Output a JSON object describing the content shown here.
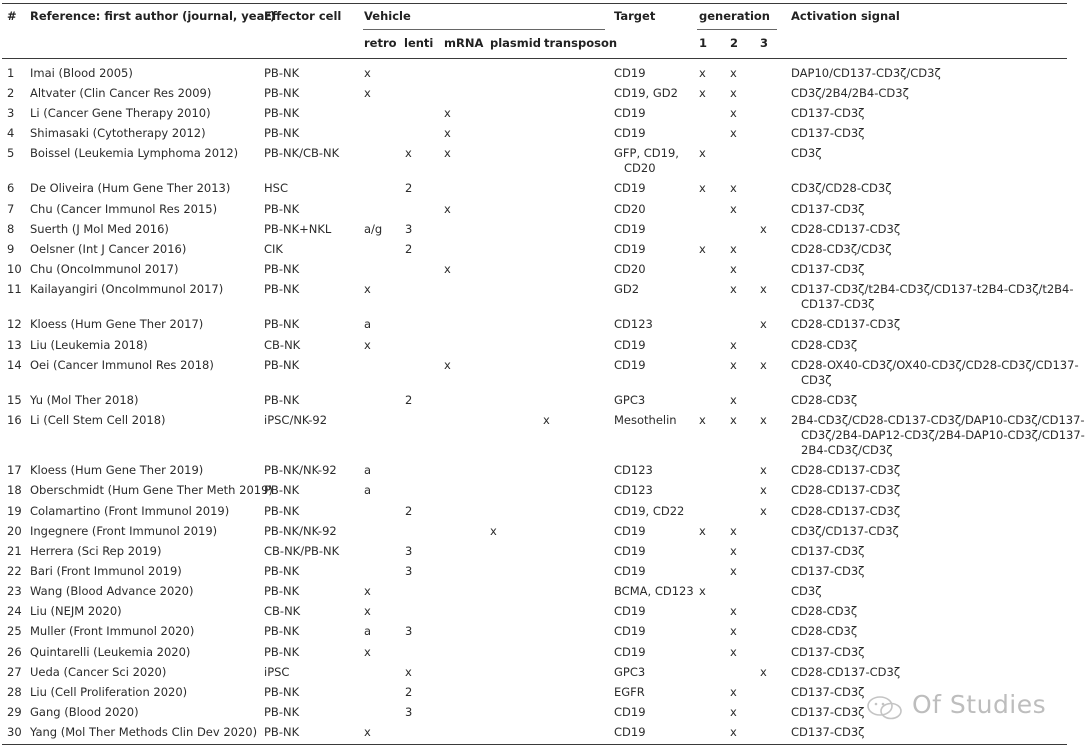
{
  "headers": {
    "num": "#",
    "reference": "Reference: first author (journal, year)",
    "effector": "Effector cell",
    "vehicle": "Vehicle",
    "target": "Target",
    "generation": "generation",
    "activation": "Activation signal",
    "vehicle_sub": [
      "retro",
      "lenti",
      "mRNA",
      "plasmid",
      "transposon"
    ],
    "generation_sub": [
      "1",
      "2",
      "3"
    ]
  },
  "rows": [
    {
      "num": "1",
      "ref": "Imai (Blood 2005)",
      "eff": "PB-NK",
      "retro": "x",
      "lenti": "",
      "mrna": "",
      "plasmid": "",
      "transposon": "",
      "target": [
        "CD19"
      ],
      "g1": "x",
      "g2": "x",
      "g3": "",
      "signal": [
        "DAP10/CD137-CD3ζ/CD3ζ"
      ]
    },
    {
      "num": "2",
      "ref": "Altvater (Clin Cancer Res 2009)",
      "eff": "PB-NK",
      "retro": "x",
      "lenti": "",
      "mrna": "",
      "plasmid": "",
      "transposon": "",
      "target": [
        "CD19, GD2"
      ],
      "g1": "x",
      "g2": "x",
      "g3": "",
      "signal": [
        "CD3ζ/2B4/2B4-CD3ζ"
      ]
    },
    {
      "num": "3",
      "ref": "Li (Cancer Gene Therapy 2010)",
      "eff": "PB-NK",
      "retro": "",
      "lenti": "",
      "mrna": "x",
      "plasmid": "",
      "transposon": "",
      "target": [
        "CD19"
      ],
      "g1": "",
      "g2": "x",
      "g3": "",
      "signal": [
        "CD137-CD3ζ"
      ]
    },
    {
      "num": "4",
      "ref": "Shimasaki (Cytotherapy 2012)",
      "eff": "PB-NK",
      "retro": "",
      "lenti": "",
      "mrna": "x",
      "plasmid": "",
      "transposon": "",
      "target": [
        "CD19"
      ],
      "g1": "",
      "g2": "x",
      "g3": "",
      "signal": [
        "CD137-CD3ζ"
      ]
    },
    {
      "num": "5",
      "ref": "Boissel (Leukemia Lymphoma 2012)",
      "eff": "PB-NK/CB-NK",
      "retro": "",
      "lenti": "x",
      "mrna": "x",
      "plasmid": "",
      "transposon": "",
      "target": [
        "GFP, CD19,",
        "CD20"
      ],
      "g1": "x",
      "g2": "",
      "g3": "",
      "signal": [
        "CD3ζ"
      ]
    },
    {
      "num": "6",
      "ref": "De Oliveira (Hum Gene Ther 2013)",
      "eff": "HSC",
      "retro": "",
      "lenti": "2",
      "mrna": "",
      "plasmid": "",
      "transposon": "",
      "target": [
        "CD19"
      ],
      "g1": "x",
      "g2": "x",
      "g3": "",
      "signal": [
        "CD3ζ/CD28-CD3ζ"
      ]
    },
    {
      "num": "7",
      "ref": "Chu (Cancer Immunol Res 2015)",
      "eff": "PB-NK",
      "retro": "",
      "lenti": "",
      "mrna": "x",
      "plasmid": "",
      "transposon": "",
      "target": [
        "CD20"
      ],
      "g1": "",
      "g2": "x",
      "g3": "",
      "signal": [
        "CD137-CD3ζ"
      ]
    },
    {
      "num": "8",
      "ref": "Suerth (J Mol Med 2016)",
      "eff": "PB-NK+NKL",
      "retro": "a/g",
      "lenti": "3",
      "mrna": "",
      "plasmid": "",
      "transposon": "",
      "target": [
        "CD19"
      ],
      "g1": "",
      "g2": "",
      "g3": "x",
      "signal": [
        "CD28-CD137-CD3ζ"
      ]
    },
    {
      "num": "9",
      "ref": "Oelsner (Int J Cancer 2016)",
      "eff": "CIK",
      "retro": "",
      "lenti": "2",
      "mrna": "",
      "plasmid": "",
      "transposon": "",
      "target": [
        "CD19"
      ],
      "g1": "x",
      "g2": "x",
      "g3": "",
      "signal": [
        "CD28-CD3ζ/CD3ζ"
      ]
    },
    {
      "num": "10",
      "ref": "Chu (OncoImmunol 2017)",
      "eff": "PB-NK",
      "retro": "",
      "lenti": "",
      "mrna": "x",
      "plasmid": "",
      "transposon": "",
      "target": [
        "CD20"
      ],
      "g1": "",
      "g2": "x",
      "g3": "",
      "signal": [
        "CD137-CD3ζ"
      ]
    },
    {
      "num": "11",
      "ref": "Kailayangiri (OncoImmunol 2017)",
      "eff": "PB-NK",
      "retro": "x",
      "lenti": "",
      "mrna": "",
      "plasmid": "",
      "transposon": "",
      "target": [
        "GD2"
      ],
      "g1": "",
      "g2": "x",
      "g3": "x",
      "signal": [
        "CD137-CD3ζ/t2B4-CD3ζ/CD137-t2B4-CD3ζ/t2B4-",
        "CD137-CD3ζ"
      ]
    },
    {
      "num": "12",
      "ref": "Kloess (Hum Gene Ther 2017)",
      "eff": "PB-NK",
      "retro": "a",
      "lenti": "",
      "mrna": "",
      "plasmid": "",
      "transposon": "",
      "target": [
        "CD123"
      ],
      "g1": "",
      "g2": "",
      "g3": "x",
      "signal": [
        "CD28-CD137-CD3ζ"
      ]
    },
    {
      "num": "13",
      "ref": "Liu (Leukemia 2018)",
      "eff": "CB-NK",
      "retro": "x",
      "lenti": "",
      "mrna": "",
      "plasmid": "",
      "transposon": "",
      "target": [
        "CD19"
      ],
      "g1": "",
      "g2": "x",
      "g3": "",
      "signal": [
        "CD28-CD3ζ"
      ]
    },
    {
      "num": "14",
      "ref": "Oei (Cancer Immunol Res 2018)",
      "eff": "PB-NK",
      "retro": "",
      "lenti": "",
      "mrna": "x",
      "plasmid": "",
      "transposon": "",
      "target": [
        "CD19"
      ],
      "g1": "",
      "g2": "x",
      "g3": "x",
      "signal": [
        "CD28-OX40-CD3ζ/OX40-CD3ζ/CD28-CD3ζ/CD137-",
        "CD3ζ"
      ]
    },
    {
      "num": "15",
      "ref": "Yu (Mol Ther 2018)",
      "eff": "PB-NK",
      "retro": "",
      "lenti": "2",
      "mrna": "",
      "plasmid": "",
      "transposon": "",
      "target": [
        "GPC3"
      ],
      "g1": "",
      "g2": "x",
      "g3": "",
      "signal": [
        "CD28-CD3ζ"
      ]
    },
    {
      "num": "16",
      "ref": "Li (Cell Stem Cell 2018)",
      "eff": "iPSC/NK-92",
      "retro": "",
      "lenti": "",
      "mrna": "",
      "plasmid": "",
      "transposon": "x",
      "target": [
        "Mesothelin"
      ],
      "g1": "x",
      "g2": "x",
      "g3": "x",
      "signal": [
        "2B4-CD3ζ/CD28-CD137-CD3ζ/DAP10-CD3ζ/CD137-",
        "CD3ζ/2B4-DAP12-CD3ζ/2B4-DAP10-CD3ζ/CD137-",
        "2B4-CD3ζ/CD3ζ"
      ]
    },
    {
      "num": "17",
      "ref": "Kloess (Hum Gene Ther 2019)",
      "eff": "PB-NK/NK-92",
      "retro": "a",
      "lenti": "",
      "mrna": "",
      "plasmid": "",
      "transposon": "",
      "target": [
        "CD123"
      ],
      "g1": "",
      "g2": "",
      "g3": "x",
      "signal": [
        "CD28-CD137-CD3ζ"
      ]
    },
    {
      "num": "18",
      "ref": "Oberschmidt (Hum Gene Ther Meth 2019)",
      "eff": "PB-NK",
      "retro": "a",
      "lenti": "",
      "mrna": "",
      "plasmid": "",
      "transposon": "",
      "target": [
        "CD123"
      ],
      "g1": "",
      "g2": "",
      "g3": "x",
      "signal": [
        "CD28-CD137-CD3ζ"
      ]
    },
    {
      "num": "19",
      "ref": "Colamartino (Front Immunol 2019)",
      "eff": "PB-NK",
      "retro": "",
      "lenti": "2",
      "mrna": "",
      "plasmid": "",
      "transposon": "",
      "target": [
        "CD19, CD22"
      ],
      "g1": "",
      "g2": "",
      "g3": "x",
      "signal": [
        "CD28-CD137-CD3ζ"
      ]
    },
    {
      "num": "20",
      "ref": "Ingegnere (Front Immunol 2019)",
      "eff": "PB-NK/NK-92",
      "retro": "",
      "lenti": "",
      "mrna": "",
      "plasmid": "x",
      "transposon": "",
      "target": [
        "CD19"
      ],
      "g1": "x",
      "g2": "x",
      "g3": "",
      "signal": [
        "CD3ζ/CD137-CD3ζ"
      ]
    },
    {
      "num": "21",
      "ref": "Herrera (Sci Rep 2019)",
      "eff": "CB-NK/PB-NK",
      "retro": "",
      "lenti": "3",
      "mrna": "",
      "plasmid": "",
      "transposon": "",
      "target": [
        "CD19"
      ],
      "g1": "",
      "g2": "x",
      "g3": "",
      "signal": [
        "CD137-CD3ζ"
      ]
    },
    {
      "num": "22",
      "ref": "Bari (Front Immunol 2019)",
      "eff": "PB-NK",
      "retro": "",
      "lenti": "3",
      "mrna": "",
      "plasmid": "",
      "transposon": "",
      "target": [
        "CD19"
      ],
      "g1": "",
      "g2": "x",
      "g3": "",
      "signal": [
        "CD137-CD3ζ"
      ]
    },
    {
      "num": "23",
      "ref": "Wang (Blood Advance 2020)",
      "eff": "PB-NK",
      "retro": "x",
      "lenti": "",
      "mrna": "",
      "plasmid": "",
      "transposon": "",
      "target": [
        "BCMA, CD123"
      ],
      "g1": "x",
      "g2": "",
      "g3": "",
      "signal": [
        "CD3ζ"
      ]
    },
    {
      "num": "24",
      "ref": "Liu (NEJM 2020)",
      "eff": "CB-NK",
      "retro": "x",
      "lenti": "",
      "mrna": "",
      "plasmid": "",
      "transposon": "",
      "target": [
        "CD19"
      ],
      "g1": "",
      "g2": "x",
      "g3": "",
      "signal": [
        "CD28-CD3ζ"
      ]
    },
    {
      "num": "25",
      "ref": "Muller (Front Immunol 2020)",
      "eff": "PB-NK",
      "retro": "a",
      "lenti": "3",
      "mrna": "",
      "plasmid": "",
      "transposon": "",
      "target": [
        "CD19"
      ],
      "g1": "",
      "g2": "x",
      "g3": "",
      "signal": [
        "CD28-CD3ζ"
      ]
    },
    {
      "num": "26",
      "ref": "Quintarelli (Leukemia 2020)",
      "eff": "PB-NK",
      "retro": "x",
      "lenti": "",
      "mrna": "",
      "plasmid": "",
      "transposon": "",
      "target": [
        "CD19"
      ],
      "g1": "",
      "g2": "x",
      "g3": "",
      "signal": [
        "CD137-CD3ζ"
      ]
    },
    {
      "num": "27",
      "ref": "Ueda (Cancer Sci 2020)",
      "eff": "iPSC",
      "retro": "",
      "lenti": "x",
      "mrna": "",
      "plasmid": "",
      "transposon": "",
      "target": [
        "GPC3"
      ],
      "g1": "",
      "g2": "",
      "g3": "x",
      "signal": [
        "CD28-CD137-CD3ζ"
      ]
    },
    {
      "num": "28",
      "ref": "Liu (Cell Proliferation 2020)",
      "eff": "PB-NK",
      "retro": "",
      "lenti": "2",
      "mrna": "",
      "plasmid": "",
      "transposon": "",
      "target": [
        "EGFR"
      ],
      "g1": "",
      "g2": "x",
      "g3": "",
      "signal": [
        "CD137-CD3ζ"
      ]
    },
    {
      "num": "29",
      "ref": "Gang (Blood 2020)",
      "eff": "PB-NK",
      "retro": "",
      "lenti": "3",
      "mrna": "",
      "plasmid": "",
      "transposon": "",
      "target": [
        "CD19"
      ],
      "g1": "",
      "g2": "x",
      "g3": "",
      "signal": [
        "CD137-CD3ζ"
      ]
    },
    {
      "num": "30",
      "ref": "Yang (Mol Ther Methods Clin Dev 2020)",
      "eff": "PB-NK",
      "retro": "x",
      "lenti": "",
      "mrna": "",
      "plasmid": "",
      "transposon": "",
      "target": [
        "CD19"
      ],
      "g1": "",
      "g2": "x",
      "g3": "",
      "signal": [
        "CD137-CD3ζ"
      ]
    }
  ],
  "watermark": "Of Studies"
}
